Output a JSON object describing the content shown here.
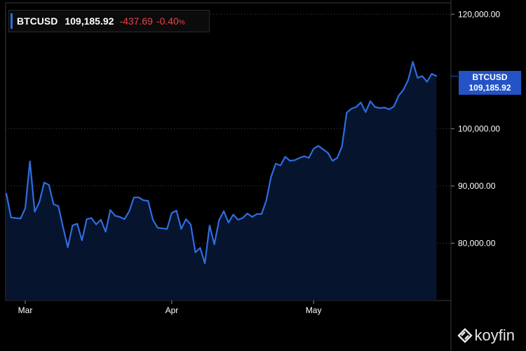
{
  "chart_data": {
    "type": "area",
    "symbol": "BTCUSD",
    "last_price": "109,185.92",
    "change": "-437.69",
    "change_pct": "-0.40",
    "change_pct_unit": "%",
    "price_tag": {
      "symbol": "BTCUSD",
      "value": "109,185.92"
    },
    "x_tick_labels": [
      "Mar",
      "Apr",
      "May"
    ],
    "y_tick_labels": [
      "120,000.00",
      "100,000.00",
      "90,000.00",
      "80,000.00"
    ],
    "y_ticks": [
      120000,
      100000,
      90000,
      80000
    ],
    "ylim": [
      70000,
      122000
    ],
    "grid": true,
    "x": [
      "2025-02-25",
      "2025-02-26",
      "2025-02-27",
      "2025-02-28",
      "2025-03-01",
      "2025-03-02",
      "2025-03-03",
      "2025-03-04",
      "2025-03-05",
      "2025-03-06",
      "2025-03-07",
      "2025-03-08",
      "2025-03-09",
      "2025-03-10",
      "2025-03-11",
      "2025-03-12",
      "2025-03-13",
      "2025-03-14",
      "2025-03-15",
      "2025-03-16",
      "2025-03-17",
      "2025-03-18",
      "2025-03-19",
      "2025-03-20",
      "2025-03-21",
      "2025-03-22",
      "2025-03-23",
      "2025-03-24",
      "2025-03-25",
      "2025-03-26",
      "2025-03-27",
      "2025-03-28",
      "2025-03-29",
      "2025-03-30",
      "2025-03-31",
      "2025-04-01",
      "2025-04-02",
      "2025-04-03",
      "2025-04-04",
      "2025-04-05",
      "2025-04-06",
      "2025-04-07",
      "2025-04-08",
      "2025-04-09",
      "2025-04-10",
      "2025-04-11",
      "2025-04-12",
      "2025-04-13",
      "2025-04-14",
      "2025-04-15",
      "2025-04-16",
      "2025-04-17",
      "2025-04-18",
      "2025-04-19",
      "2025-04-20",
      "2025-04-21",
      "2025-04-22",
      "2025-04-23",
      "2025-04-24",
      "2025-04-25",
      "2025-04-26",
      "2025-04-27",
      "2025-04-28",
      "2025-04-29",
      "2025-04-30",
      "2025-05-01",
      "2025-05-02",
      "2025-05-03",
      "2025-05-04",
      "2025-05-05",
      "2025-05-06",
      "2025-05-07",
      "2025-05-08",
      "2025-05-09",
      "2025-05-10",
      "2025-05-11",
      "2025-05-12",
      "2025-05-13",
      "2025-05-14",
      "2025-05-15",
      "2025-05-16",
      "2025-05-17",
      "2025-05-18",
      "2025-05-19",
      "2025-05-20",
      "2025-05-21",
      "2025-05-22",
      "2025-05-23",
      "2025-05-24",
      "2025-05-25",
      "2025-05-26",
      "2025-05-27"
    ],
    "values": [
      88700,
      84500,
      84400,
      84300,
      86100,
      94300,
      85500,
      87200,
      90600,
      90200,
      86800,
      86500,
      82800,
      79300,
      83100,
      83400,
      80500,
      84200,
      84400,
      83300,
      84100,
      82000,
      85800,
      84800,
      84600,
      84200,
      85600,
      88000,
      88000,
      87500,
      87400,
      84100,
      82700,
      82600,
      82500,
      85300,
      85700,
      82500,
      84200,
      83300,
      78400,
      79200,
      76500,
      83100,
      79800,
      84000,
      85600,
      83600,
      85000,
      84100,
      84400,
      85200,
      84600,
      85100,
      85100,
      87500,
      91600,
      93900,
      93600,
      95100,
      94400,
      94500,
      94900,
      95200,
      94900,
      96500,
      97000,
      96400,
      95800,
      94400,
      94900,
      96900,
      102800,
      103500,
      103800,
      104600,
      102900,
      104800,
      103800,
      103600,
      103700,
      103400,
      103900,
      105800,
      106800,
      108500,
      111700,
      108900,
      109200,
      108200,
      109600,
      109186
    ]
  },
  "branding": {
    "logo_text": "koyfin"
  },
  "colors": {
    "background": "#000000",
    "line": "#2f6ce0",
    "area_fill": "#06142e",
    "grid": "#4a4a4a",
    "negative": "#f0434a",
    "price_tag_bg": "#2353c5",
    "axis_text": "#ffffff"
  }
}
